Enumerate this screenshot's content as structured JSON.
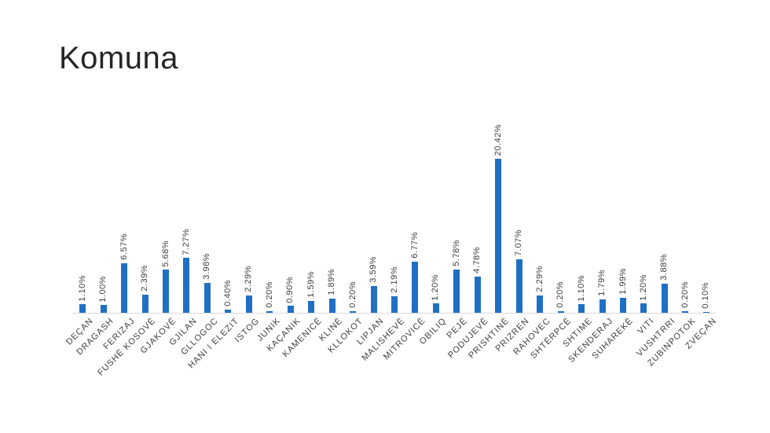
{
  "chart_data": {
    "type": "bar",
    "title": "Komuna",
    "categories": [
      "DEÇAN",
      "DRAGASH",
      "FERIZAJ",
      "FUSHË KOSOVË",
      "GJAKOVË",
      "GJILAN",
      "GLLOGOC",
      "HANI I ELEZIT",
      "ISTOG",
      "JUNIK",
      "KAÇANIK",
      "KAMENICË",
      "KLINË",
      "KLLOKOT",
      "LIPJAN",
      "MALISHEVË",
      "MITROVICË",
      "OBILIQ",
      "PEJË",
      "PODUJEVË",
      "PRISHTINË",
      "PRIZREN",
      "RAHOVEC",
      "SHTËRPCË",
      "SHTIME",
      "SKENDERAJ",
      "SUHAREKË",
      "VITI",
      "VUSHTRRI",
      "ZUBINPOTOK",
      "ZVEÇAN"
    ],
    "values": [
      1.1,
      1.0,
      6.57,
      2.39,
      5.68,
      7.27,
      3.98,
      0.4,
      2.29,
      0.2,
      0.9,
      1.59,
      1.89,
      0.2,
      3.59,
      2.19,
      6.77,
      1.2,
      5.78,
      4.78,
      20.42,
      7.07,
      2.29,
      0.2,
      1.1,
      1.79,
      1.99,
      1.2,
      3.88,
      0.2,
      0.1
    ],
    "data_labels": [
      "1.10%",
      "1.00%",
      "6.57%",
      "2.39%",
      "5.68%",
      "7.27%",
      "3.98%",
      "0.40%",
      "2.29%",
      "0.20%",
      "0.90%",
      "1.59%",
      "1.89%",
      "0.20%",
      "3.59%",
      "2.19%",
      "6.77%",
      "1.20%",
      "5.78%",
      "4.78%",
      "20.42%",
      "7.07%",
      "2.29%",
      "0.20%",
      "1.10%",
      "1.79%",
      "1.99%",
      "1.20%",
      "3.88%",
      "0.20%",
      "0.10%"
    ],
    "xlabel": "",
    "ylabel": "",
    "ylim": [
      0,
      21
    ],
    "grid": false,
    "legend": null,
    "bar_color": "#1F6FC5",
    "axis_color": "#D9D9D9",
    "label_color": "#404040",
    "title_color": "#262626"
  }
}
